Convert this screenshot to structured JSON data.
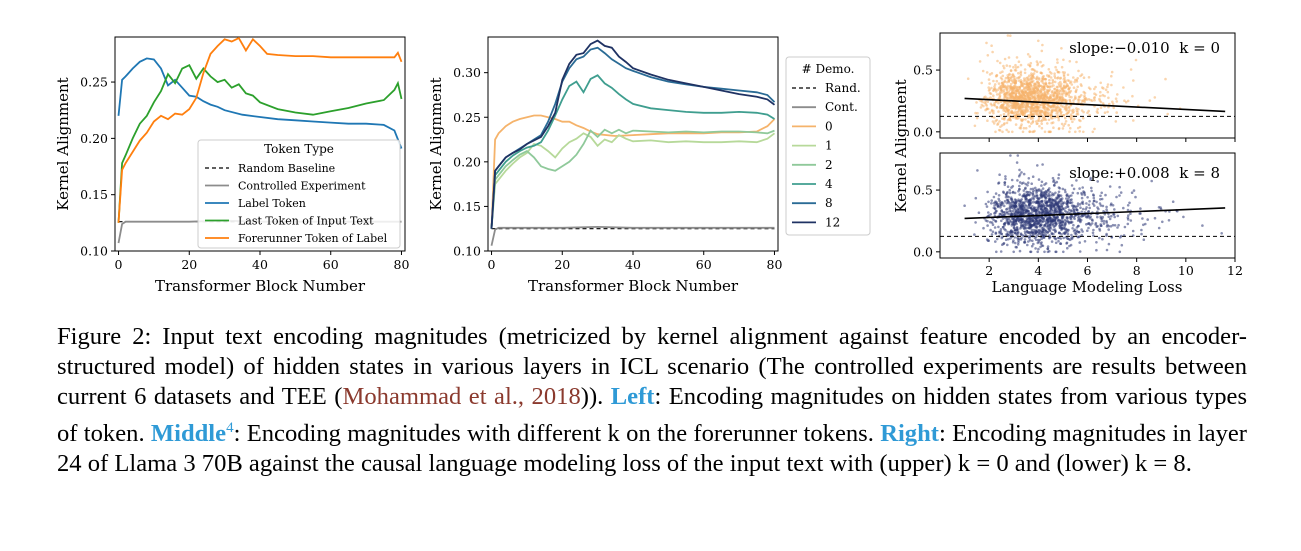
{
  "panels": {
    "left": {
      "ylabel": "Kernel Alignment",
      "xlabel": "Transformer Block Number",
      "xticks": [
        0,
        20,
        40,
        60,
        80
      ],
      "yticks": [
        "0.10",
        "0.15",
        "0.20",
        "0.25"
      ],
      "legend_title": "Token Type"
    },
    "middle": {
      "ylabel": "Kernel Alignment",
      "xlabel": "Transformer Block Number",
      "xticks": [
        0,
        20,
        40,
        60,
        80
      ],
      "yticks": [
        "0.10",
        "0.15",
        "0.20",
        "0.25",
        "0.30"
      ],
      "legend_title": "# Demo."
    },
    "right": {
      "ylabel": "Kernel Alignment",
      "xlabel": "Language Modeling Loss",
      "xticks": [
        2,
        4,
        6,
        8,
        10,
        12
      ],
      "yticks": [
        "0.0",
        "0.5"
      ],
      "upper_annotation": "slope:−0.010  k = 0",
      "lower_annotation": "slope:+0.008  k = 8"
    }
  },
  "chart_data": [
    {
      "type": "line",
      "xlabel": "Transformer Block Number",
      "ylabel": "Kernel Alignment",
      "xlim": [
        -1,
        81
      ],
      "ylim": [
        0.1,
        0.29
      ],
      "legend_title": "Token Type",
      "legend_position": "lower-right",
      "series": [
        {
          "name": "Random Baseline",
          "color": "#000000",
          "dash": true,
          "x": [
            0,
            80
          ],
          "y": [
            0.126,
            0.126
          ]
        },
        {
          "name": "Controlled Experiment",
          "color": "#8c8c8c",
          "x": [
            0,
            1,
            2,
            5,
            10,
            20,
            30,
            40,
            50,
            60,
            70,
            80
          ],
          "y": [
            0.107,
            0.124,
            0.126,
            0.126,
            0.126,
            0.126,
            0.127,
            0.126,
            0.126,
            0.126,
            0.126,
            0.126
          ]
        },
        {
          "name": "Label Token",
          "color": "#1f77b4",
          "x": [
            0,
            1,
            2,
            4,
            6,
            8,
            10,
            12,
            14,
            16,
            18,
            20,
            22,
            24,
            26,
            28,
            30,
            35,
            40,
            45,
            50,
            55,
            60,
            65,
            70,
            75,
            78,
            80
          ],
          "y": [
            0.22,
            0.252,
            0.255,
            0.262,
            0.268,
            0.271,
            0.27,
            0.262,
            0.247,
            0.252,
            0.245,
            0.238,
            0.237,
            0.233,
            0.23,
            0.228,
            0.225,
            0.221,
            0.219,
            0.217,
            0.216,
            0.215,
            0.214,
            0.213,
            0.213,
            0.212,
            0.207,
            0.191
          ]
        },
        {
          "name": "Last Token of Input Text",
          "color": "#2ca02c",
          "x": [
            0,
            1,
            2,
            4,
            6,
            8,
            10,
            12,
            14,
            16,
            18,
            20,
            22,
            24,
            26,
            28,
            30,
            32,
            34,
            36,
            38,
            40,
            45,
            50,
            55,
            60,
            65,
            70,
            75,
            78,
            79,
            80
          ],
          "y": [
            0.125,
            0.178,
            0.185,
            0.2,
            0.213,
            0.22,
            0.232,
            0.242,
            0.257,
            0.249,
            0.262,
            0.265,
            0.253,
            0.262,
            0.255,
            0.25,
            0.252,
            0.245,
            0.248,
            0.24,
            0.238,
            0.232,
            0.226,
            0.223,
            0.221,
            0.224,
            0.227,
            0.231,
            0.234,
            0.243,
            0.249,
            0.235
          ]
        },
        {
          "name": "Forerunner Token of Label",
          "color": "#ff7f0e",
          "x": [
            0,
            1,
            2,
            4,
            6,
            8,
            10,
            12,
            14,
            16,
            18,
            20,
            22,
            24,
            26,
            28,
            30,
            32,
            34,
            36,
            38,
            40,
            42,
            45,
            50,
            55,
            60,
            65,
            70,
            75,
            78,
            79,
            80
          ],
          "y": [
            0.125,
            0.172,
            0.178,
            0.188,
            0.198,
            0.205,
            0.215,
            0.22,
            0.217,
            0.222,
            0.221,
            0.226,
            0.236,
            0.258,
            0.275,
            0.282,
            0.288,
            0.286,
            0.289,
            0.278,
            0.288,
            0.282,
            0.275,
            0.274,
            0.273,
            0.273,
            0.272,
            0.272,
            0.272,
            0.272,
            0.272,
            0.276,
            0.268
          ]
        }
      ]
    },
    {
      "type": "line",
      "xlabel": "Transformer Block Number",
      "ylabel": "Kernel Alignment",
      "xlim": [
        -1,
        81
      ],
      "ylim": [
        0.1,
        0.34
      ],
      "legend_title": "# Demo.",
      "legend_position": "outside-right",
      "series": [
        {
          "name": "Rand.",
          "color": "#000000",
          "dash": true,
          "x": [
            0,
            80
          ],
          "y": [
            0.125,
            0.125
          ]
        },
        {
          "name": "Cont.",
          "color": "#8c8c8c",
          "x": [
            0,
            1,
            2,
            5,
            10,
            20,
            30,
            40,
            50,
            60,
            70,
            80
          ],
          "y": [
            0.106,
            0.124,
            0.126,
            0.126,
            0.126,
            0.126,
            0.127,
            0.126,
            0.126,
            0.126,
            0.126,
            0.126
          ]
        },
        {
          "name": "0",
          "color": "#f5b36b",
          "x": [
            0,
            1,
            2,
            4,
            6,
            8,
            10,
            12,
            14,
            16,
            18,
            20,
            22,
            24,
            26,
            28,
            30,
            35,
            40,
            45,
            50,
            55,
            60,
            65,
            70,
            75,
            78,
            80
          ],
          "y": [
            0.125,
            0.225,
            0.232,
            0.24,
            0.245,
            0.248,
            0.25,
            0.252,
            0.252,
            0.25,
            0.248,
            0.245,
            0.245,
            0.241,
            0.238,
            0.234,
            0.231,
            0.229,
            0.23,
            0.231,
            0.232,
            0.232,
            0.232,
            0.233,
            0.233,
            0.234,
            0.24,
            0.248
          ]
        },
        {
          "name": "1",
          "color": "#b7d99a",
          "x": [
            0,
            1,
            2,
            4,
            6,
            8,
            10,
            12,
            14,
            16,
            18,
            20,
            22,
            24,
            26,
            28,
            30,
            32,
            34,
            36,
            38,
            40,
            45,
            50,
            55,
            60,
            65,
            70,
            75,
            78,
            80
          ],
          "y": [
            0.125,
            0.175,
            0.18,
            0.19,
            0.198,
            0.205,
            0.21,
            0.22,
            0.218,
            0.212,
            0.205,
            0.215,
            0.222,
            0.226,
            0.232,
            0.228,
            0.218,
            0.225,
            0.222,
            0.23,
            0.226,
            0.223,
            0.224,
            0.222,
            0.223,
            0.222,
            0.222,
            0.223,
            0.222,
            0.226,
            0.232
          ]
        },
        {
          "name": "2",
          "color": "#8fc99a",
          "x": [
            0,
            1,
            2,
            4,
            6,
            8,
            10,
            12,
            14,
            16,
            18,
            20,
            22,
            24,
            26,
            28,
            30,
            32,
            34,
            36,
            38,
            40,
            45,
            50,
            55,
            60,
            65,
            70,
            75,
            78,
            80
          ],
          "y": [
            0.125,
            0.18,
            0.185,
            0.195,
            0.202,
            0.208,
            0.212,
            0.205,
            0.195,
            0.192,
            0.19,
            0.195,
            0.2,
            0.208,
            0.22,
            0.235,
            0.228,
            0.236,
            0.232,
            0.236,
            0.232,
            0.235,
            0.234,
            0.233,
            0.234,
            0.233,
            0.234,
            0.234,
            0.233,
            0.232,
            0.235
          ]
        },
        {
          "name": "4",
          "color": "#3f9e8f",
          "x": [
            0,
            1,
            2,
            4,
            6,
            8,
            10,
            12,
            14,
            16,
            18,
            20,
            22,
            24,
            26,
            28,
            30,
            32,
            34,
            36,
            38,
            40,
            45,
            50,
            55,
            60,
            65,
            70,
            75,
            78,
            80
          ],
          "y": [
            0.125,
            0.185,
            0.19,
            0.2,
            0.207,
            0.212,
            0.216,
            0.218,
            0.222,
            0.235,
            0.252,
            0.27,
            0.285,
            0.29,
            0.278,
            0.293,
            0.297,
            0.288,
            0.283,
            0.276,
            0.27,
            0.265,
            0.26,
            0.258,
            0.256,
            0.255,
            0.255,
            0.256,
            0.255,
            0.253,
            0.248
          ]
        },
        {
          "name": "8",
          "color": "#2a6b95",
          "x": [
            0,
            1,
            2,
            4,
            6,
            8,
            10,
            12,
            14,
            16,
            18,
            20,
            22,
            24,
            26,
            28,
            30,
            32,
            34,
            36,
            38,
            40,
            45,
            50,
            55,
            60,
            65,
            70,
            75,
            78,
            80
          ],
          "y": [
            0.125,
            0.19,
            0.195,
            0.205,
            0.21,
            0.215,
            0.22,
            0.225,
            0.23,
            0.245,
            0.265,
            0.29,
            0.305,
            0.315,
            0.318,
            0.326,
            0.328,
            0.322,
            0.315,
            0.31,
            0.305,
            0.302,
            0.295,
            0.29,
            0.287,
            0.284,
            0.282,
            0.28,
            0.278,
            0.275,
            0.267
          ]
        },
        {
          "name": "12",
          "color": "#1f3263",
          "x": [
            0,
            1,
            2,
            4,
            6,
            8,
            10,
            12,
            14,
            16,
            18,
            20,
            22,
            24,
            26,
            28,
            30,
            32,
            34,
            36,
            38,
            40,
            45,
            50,
            55,
            60,
            65,
            70,
            75,
            78,
            80
          ],
          "y": [
            0.125,
            0.19,
            0.195,
            0.205,
            0.21,
            0.214,
            0.22,
            0.224,
            0.228,
            0.24,
            0.255,
            0.292,
            0.31,
            0.32,
            0.322,
            0.332,
            0.336,
            0.33,
            0.328,
            0.318,
            0.312,
            0.305,
            0.298,
            0.292,
            0.288,
            0.284,
            0.28,
            0.276,
            0.273,
            0.27,
            0.264
          ]
        }
      ]
    },
    {
      "type": "scatter",
      "xlabel": "",
      "ylabel": "Kernel Alignment",
      "xlim": [
        0,
        12
      ],
      "ylim": [
        -0.05,
        0.8
      ],
      "color": "#f5b36b",
      "baseline": 0.125,
      "fit": {
        "x": [
          1,
          11.6
        ],
        "y": [
          0.27,
          0.165
        ]
      },
      "slope": -0.01,
      "k": 0,
      "cloud": {
        "center_x": 3.3,
        "spread_x": 1.1,
        "center_y": 0.26,
        "spread_y": 0.11,
        "count": 1500
      }
    },
    {
      "type": "scatter",
      "xlabel": "Language Modeling Loss",
      "ylabel": "Kernel Alignment",
      "xlim": [
        0,
        12
      ],
      "ylim": [
        -0.05,
        0.8
      ],
      "color": "#2d3877",
      "baseline": 0.125,
      "fit": {
        "x": [
          1,
          11.6
        ],
        "y": [
          0.27,
          0.355
        ]
      },
      "slope": 0.008,
      "k": 8,
      "cloud": {
        "center_x": 3.6,
        "spread_x": 1.2,
        "center_y": 0.29,
        "spread_y": 0.12,
        "count": 1500
      }
    }
  ],
  "caption": {
    "part1": "Figure 2: Input text encoding magnitudes (metricized by kernel alignment against feature encoded by an encoder-structured model) of hidden states in various layers in ICL scenario (The controlled experiments are results between current 6 datasets and TEE (",
    "ref": "Mohammad et al., 2018",
    "part2": ")). ",
    "left_label": "Left",
    "part3": ": Encoding magnitudes on hidden states from various types of token. ",
    "middle_label": "Middle",
    "footnote": "4",
    "part4": ": Encoding magnitudes with different k on the forerunner tokens. ",
    "right_label": "Right",
    "part5": ": Encoding magnitudes in layer 24 of Llama 3 70B against the causal language modeling loss of the input text with (upper) k = 0 and (lower) k = 8."
  }
}
